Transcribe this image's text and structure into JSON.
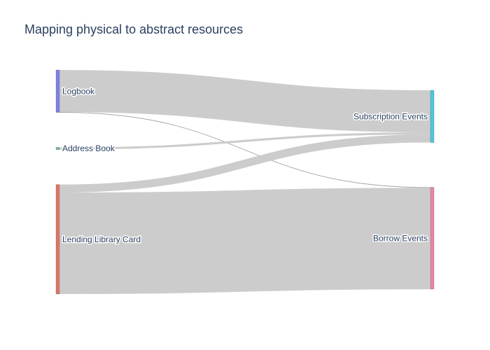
{
  "chart_data": {
    "type": "sankey",
    "title": "Mapping physical to abstract resources",
    "colors": {
      "link": "#cccccc",
      "link_thin": "#999999",
      "Logbook": "#7f7fe6",
      "Address Book": "#6cb7a0",
      "Lending Library Card": "#e07566",
      "Subscription Events": "#4cc6e0",
      "Borrow Events": "#ea84a3"
    },
    "nodes": [
      {
        "name": "Logbook",
        "column": "source"
      },
      {
        "name": "Address Book",
        "column": "source"
      },
      {
        "name": "Lending Library Card",
        "column": "source"
      },
      {
        "name": "Subscription Events",
        "column": "target"
      },
      {
        "name": "Borrow Events",
        "column": "target"
      }
    ],
    "links": [
      {
        "source": "Logbook",
        "target": "Subscription Events",
        "value": 58
      },
      {
        "source": "Logbook",
        "target": "Borrow Events",
        "value": 0.5
      },
      {
        "source": "Address Book",
        "target": "Subscription Events",
        "value": 3
      },
      {
        "source": "Lending Library Card",
        "target": "Subscription Events",
        "value": 11
      },
      {
        "source": "Lending Library Card",
        "target": "Borrow Events",
        "value": 140
      }
    ]
  }
}
